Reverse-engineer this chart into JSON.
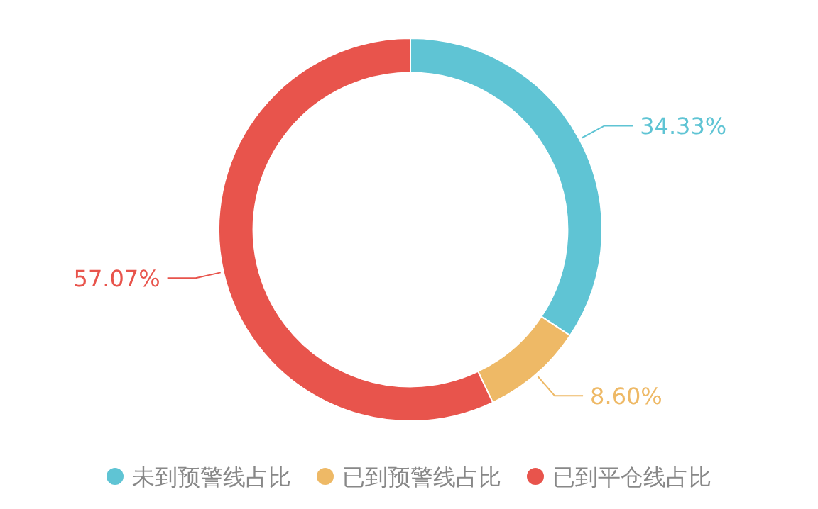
{
  "chart_data": {
    "type": "donut",
    "categories": [
      "未到预警线占比",
      "已到预警线占比",
      "已到平仓线占比"
    ],
    "values": [
      34.33,
      8.6,
      57.07
    ],
    "colors": [
      "#5fc4d4",
      "#eeb966",
      "#e8544c"
    ],
    "value_labels": [
      "34.33%",
      "8.60%",
      "57.07%"
    ],
    "legend": "bottom"
  }
}
